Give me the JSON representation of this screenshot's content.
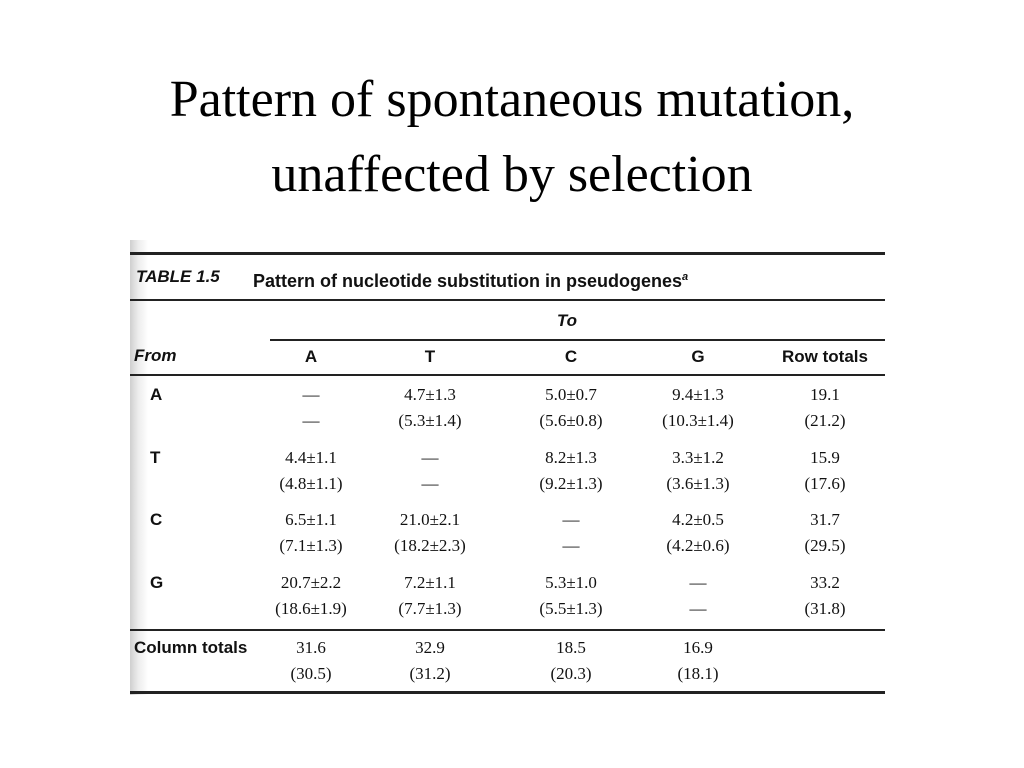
{
  "title": [
    "Pattern of spontaneous mutation,",
    "unaffected by selection"
  ],
  "table": {
    "label": "TABLE 1.5",
    "caption": "Pattern of nucleotide substitution in pseudogenes",
    "caption_note": "a",
    "group_header": "To",
    "from_header": "From",
    "columns": [
      "A",
      "T",
      "C",
      "G",
      "Row totals"
    ],
    "rows": [
      {
        "from": "A",
        "cells": [
          [
            "—",
            "—"
          ],
          [
            "4.7±1.3",
            "(5.3±1.4)"
          ],
          [
            "5.0±0.7",
            "(5.6±0.8)"
          ],
          [
            "9.4±1.3",
            "(10.3±1.4)"
          ],
          [
            "19.1",
            "(21.2)"
          ]
        ]
      },
      {
        "from": "T",
        "cells": [
          [
            "4.4±1.1",
            "(4.8±1.1)"
          ],
          [
            "—",
            "—"
          ],
          [
            "8.2±1.3",
            "(9.2±1.3)"
          ],
          [
            "3.3±1.2",
            "(3.6±1.3)"
          ],
          [
            "15.9",
            "(17.6)"
          ]
        ]
      },
      {
        "from": "C",
        "cells": [
          [
            "6.5±1.1",
            "(7.1±1.3)"
          ],
          [
            "21.0±2.1",
            "(18.2±2.3)"
          ],
          [
            "—",
            "—"
          ],
          [
            "4.2±0.5",
            "(4.2±0.6)"
          ],
          [
            "31.7",
            "(29.5)"
          ]
        ]
      },
      {
        "from": "G",
        "cells": [
          [
            "20.7±2.2",
            "(18.6±1.9)"
          ],
          [
            "7.2±1.1",
            "(7.7±1.3)"
          ],
          [
            "5.3±1.0",
            "(5.5±1.3)"
          ],
          [
            "—",
            "—"
          ],
          [
            "33.2",
            "(31.8)"
          ]
        ]
      }
    ],
    "totals": {
      "label": "Column totals",
      "cells": [
        [
          "31.6",
          "(30.5)"
        ],
        [
          "32.9",
          "(31.2)"
        ],
        [
          "18.5",
          "(20.3)"
        ],
        [
          "16.9",
          "(18.1)"
        ]
      ]
    }
  }
}
